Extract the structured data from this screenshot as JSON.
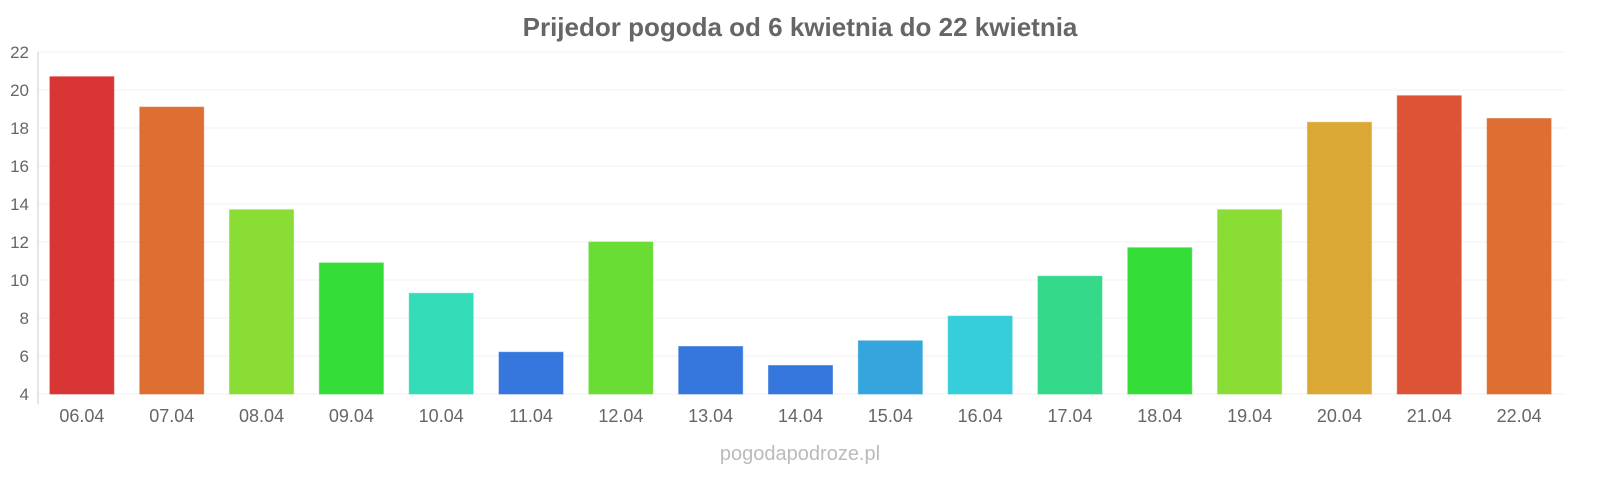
{
  "chart_data": {
    "type": "bar",
    "title": "Prijedor pogoda od 6 kwietnia do 22 kwietnia",
    "xlabel": "",
    "ylabel": "",
    "ylim": [
      4,
      22
    ],
    "yticks": [
      4,
      6,
      8,
      10,
      12,
      14,
      16,
      18,
      20,
      22
    ],
    "grid": true,
    "categories": [
      "06.04",
      "07.04",
      "08.04",
      "09.04",
      "10.04",
      "11.04",
      "12.04",
      "13.04",
      "14.04",
      "15.04",
      "16.04",
      "17.04",
      "18.04",
      "19.04",
      "20.04",
      "21.04",
      "22.04"
    ],
    "values": [
      20.7,
      19.1,
      13.7,
      10.9,
      9.3,
      6.2,
      12.0,
      6.5,
      5.5,
      6.8,
      8.1,
      10.2,
      11.7,
      13.7,
      18.3,
      19.7,
      18.5
    ],
    "colors": [
      "#d93535",
      "#dd6f33",
      "#8add35",
      "#35dd38",
      "#35dcb8",
      "#3577dd",
      "#6add35",
      "#3577dd",
      "#3577dd",
      "#35a6dd",
      "#35ceda",
      "#35d98a",
      "#35dd38",
      "#8add35",
      "#dca835",
      "#dd5335",
      "#dd6f33"
    ]
  },
  "watermark": "pogodapodroze.pl"
}
